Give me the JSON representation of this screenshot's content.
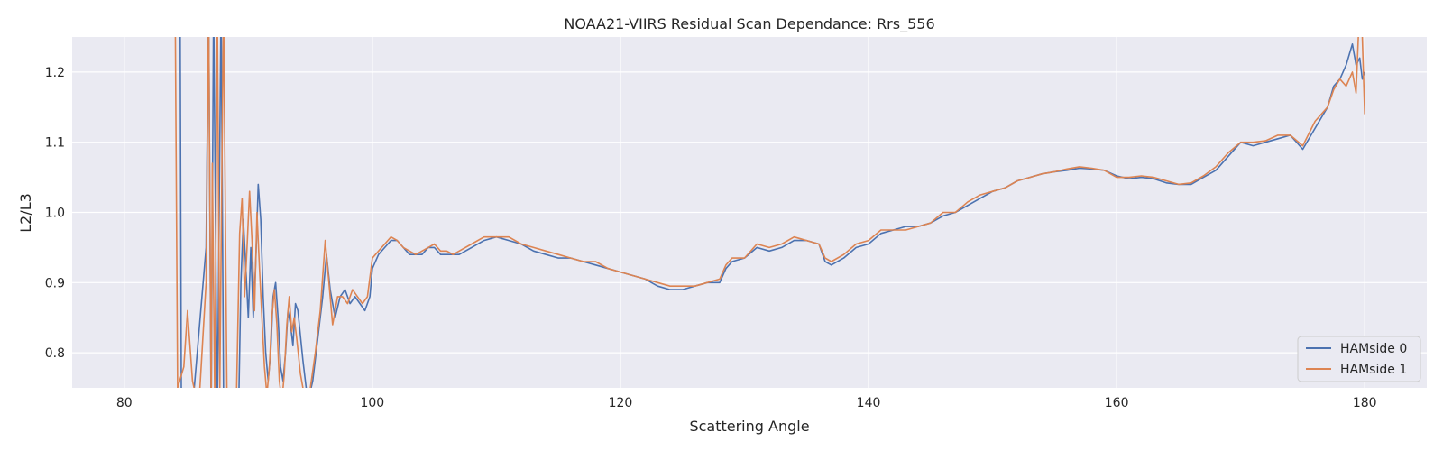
{
  "chart_data": {
    "type": "line",
    "title": "NOAA21-VIIRS Residual Scan Dependance: Rrs_556",
    "xlabel": "Scattering Angle",
    "ylabel": "L2/L3",
    "xlim": [
      75.8,
      185
    ],
    "ylim": [
      0.75,
      1.25
    ],
    "xticks": [
      80,
      100,
      120,
      140,
      160,
      180
    ],
    "yticks": [
      0.8,
      0.9,
      1.0,
      1.1,
      1.2
    ],
    "grid": true,
    "legend_position": "bottom-right",
    "series": [
      {
        "name": "HAMside 0",
        "color": "#4c72b0",
        "points": [
          [
            84.5,
            1.3
          ],
          [
            84.6,
            0.75
          ],
          [
            85.5,
            0.72
          ],
          [
            86.6,
            0.95
          ],
          [
            86.8,
            1.3
          ],
          [
            87.0,
            0.7
          ],
          [
            87.2,
            1.3
          ],
          [
            87.5,
            0.7
          ],
          [
            87.8,
            1.3
          ],
          [
            88.0,
            0.75
          ],
          [
            88.5,
            0.72
          ],
          [
            89.2,
            0.7
          ],
          [
            89.4,
            0.9
          ],
          [
            89.6,
            0.99
          ],
          [
            89.8,
            0.92
          ],
          [
            90.0,
            0.85
          ],
          [
            90.2,
            0.95
          ],
          [
            90.4,
            0.85
          ],
          [
            90.6,
            0.93
          ],
          [
            90.8,
            1.04
          ],
          [
            91.0,
            0.99
          ],
          [
            91.2,
            0.88
          ],
          [
            91.4,
            0.8
          ],
          [
            91.6,
            0.76
          ],
          [
            91.8,
            0.8
          ],
          [
            92.0,
            0.88
          ],
          [
            92.2,
            0.9
          ],
          [
            92.4,
            0.85
          ],
          [
            92.6,
            0.78
          ],
          [
            92.8,
            0.76
          ],
          [
            93.0,
            0.8
          ],
          [
            93.2,
            0.86
          ],
          [
            93.4,
            0.84
          ],
          [
            93.6,
            0.81
          ],
          [
            93.8,
            0.87
          ],
          [
            94.0,
            0.86
          ],
          [
            94.4,
            0.79
          ],
          [
            94.8,
            0.73
          ],
          [
            95.2,
            0.76
          ],
          [
            95.6,
            0.82
          ],
          [
            96.0,
            0.88
          ],
          [
            96.3,
            0.94
          ],
          [
            96.6,
            0.89
          ],
          [
            97.0,
            0.85
          ],
          [
            97.4,
            0.88
          ],
          [
            97.8,
            0.89
          ],
          [
            98.2,
            0.87
          ],
          [
            98.6,
            0.88
          ],
          [
            99.0,
            0.87
          ],
          [
            99.4,
            0.86
          ],
          [
            99.8,
            0.88
          ],
          [
            100.0,
            0.92
          ],
          [
            100.5,
            0.94
          ],
          [
            101.0,
            0.95
          ],
          [
            101.5,
            0.96
          ],
          [
            102.0,
            0.96
          ],
          [
            102.5,
            0.95
          ],
          [
            103.0,
            0.94
          ],
          [
            103.5,
            0.94
          ],
          [
            104.0,
            0.94
          ],
          [
            104.5,
            0.95
          ],
          [
            105.0,
            0.95
          ],
          [
            105.5,
            0.94
          ],
          [
            106.0,
            0.94
          ],
          [
            106.5,
            0.94
          ],
          [
            107.0,
            0.94
          ],
          [
            108.0,
            0.95
          ],
          [
            109.0,
            0.96
          ],
          [
            110.0,
            0.965
          ],
          [
            111.0,
            0.96
          ],
          [
            112.0,
            0.955
          ],
          [
            113.0,
            0.945
          ],
          [
            114.0,
            0.94
          ],
          [
            115.0,
            0.935
          ],
          [
            116.0,
            0.935
          ],
          [
            117.0,
            0.93
          ],
          [
            118.0,
            0.925
          ],
          [
            119.0,
            0.92
          ],
          [
            120.0,
            0.915
          ],
          [
            121.0,
            0.91
          ],
          [
            122.0,
            0.905
          ],
          [
            123.0,
            0.895
          ],
          [
            124.0,
            0.89
          ],
          [
            125.0,
            0.89
          ],
          [
            126.0,
            0.895
          ],
          [
            127.0,
            0.9
          ],
          [
            128.0,
            0.9
          ],
          [
            128.5,
            0.92
          ],
          [
            129.0,
            0.93
          ],
          [
            130.0,
            0.935
          ],
          [
            131.0,
            0.95
          ],
          [
            132.0,
            0.945
          ],
          [
            133.0,
            0.95
          ],
          [
            134.0,
            0.96
          ],
          [
            135.0,
            0.96
          ],
          [
            136.0,
            0.955
          ],
          [
            136.5,
            0.93
          ],
          [
            137.0,
            0.925
          ],
          [
            138.0,
            0.935
          ],
          [
            139.0,
            0.95
          ],
          [
            140.0,
            0.955
          ],
          [
            141.0,
            0.97
          ],
          [
            142.0,
            0.975
          ],
          [
            143.0,
            0.98
          ],
          [
            144.0,
            0.98
          ],
          [
            145.0,
            0.985
          ],
          [
            146.0,
            0.995
          ],
          [
            147.0,
            1.0
          ],
          [
            148.0,
            1.01
          ],
          [
            149.0,
            1.02
          ],
          [
            150.0,
            1.03
          ],
          [
            151.0,
            1.035
          ],
          [
            152.0,
            1.045
          ],
          [
            153.0,
            1.05
          ],
          [
            154.0,
            1.055
          ],
          [
            155.0,
            1.058
          ],
          [
            156.0,
            1.06
          ],
          [
            157.0,
            1.063
          ],
          [
            158.0,
            1.062
          ],
          [
            159.0,
            1.06
          ],
          [
            160.0,
            1.052
          ],
          [
            161.0,
            1.048
          ],
          [
            162.0,
            1.05
          ],
          [
            163.0,
            1.048
          ],
          [
            164.0,
            1.042
          ],
          [
            165.0,
            1.04
          ],
          [
            166.0,
            1.04
          ],
          [
            167.0,
            1.05
          ],
          [
            168.0,
            1.06
          ],
          [
            169.0,
            1.08
          ],
          [
            170.0,
            1.1
          ],
          [
            171.0,
            1.095
          ],
          [
            172.0,
            1.1
          ],
          [
            173.0,
            1.105
          ],
          [
            174.0,
            1.11
          ],
          [
            175.0,
            1.09
          ],
          [
            176.0,
            1.12
          ],
          [
            177.0,
            1.15
          ],
          [
            177.5,
            1.18
          ],
          [
            178.0,
            1.19
          ],
          [
            178.5,
            1.21
          ],
          [
            179.0,
            1.24
          ],
          [
            179.3,
            1.21
          ],
          [
            179.6,
            1.22
          ],
          [
            179.8,
            1.19
          ],
          [
            180.0,
            1.2
          ]
        ]
      },
      {
        "name": "HAMside 1",
        "color": "#dd8452",
        "points": [
          [
            84.1,
            1.3
          ],
          [
            84.3,
            0.75
          ],
          [
            84.8,
            0.78
          ],
          [
            85.1,
            0.86
          ],
          [
            85.5,
            0.76
          ],
          [
            86.0,
            0.72
          ],
          [
            86.6,
            0.9
          ],
          [
            86.8,
            1.3
          ],
          [
            87.0,
            0.72
          ],
          [
            87.1,
            1.07
          ],
          [
            87.3,
            0.72
          ],
          [
            87.5,
            1.3
          ],
          [
            87.7,
            0.75
          ],
          [
            88.0,
            1.3
          ],
          [
            88.3,
            0.7
          ],
          [
            88.6,
            0.72
          ],
          [
            89.0,
            0.7
          ],
          [
            89.3,
            0.97
          ],
          [
            89.5,
            1.02
          ],
          [
            89.7,
            0.88
          ],
          [
            89.9,
            0.95
          ],
          [
            90.1,
            1.03
          ],
          [
            90.3,
            0.96
          ],
          [
            90.5,
            0.86
          ],
          [
            90.7,
            1.0
          ],
          [
            90.9,
            0.92
          ],
          [
            91.1,
            0.85
          ],
          [
            91.3,
            0.78
          ],
          [
            91.5,
            0.74
          ],
          [
            91.7,
            0.78
          ],
          [
            91.9,
            0.85
          ],
          [
            92.1,
            0.89
          ],
          [
            92.3,
            0.84
          ],
          [
            92.5,
            0.76
          ],
          [
            92.7,
            0.73
          ],
          [
            92.9,
            0.77
          ],
          [
            93.1,
            0.84
          ],
          [
            93.3,
            0.88
          ],
          [
            93.5,
            0.83
          ],
          [
            93.7,
            0.85
          ],
          [
            93.9,
            0.82
          ],
          [
            94.2,
            0.77
          ],
          [
            94.6,
            0.73
          ],
          [
            95.0,
            0.75
          ],
          [
            95.4,
            0.8
          ],
          [
            95.8,
            0.86
          ],
          [
            96.2,
            0.96
          ],
          [
            96.5,
            0.9
          ],
          [
            96.8,
            0.84
          ],
          [
            97.2,
            0.88
          ],
          [
            97.6,
            0.88
          ],
          [
            98.0,
            0.87
          ],
          [
            98.4,
            0.89
          ],
          [
            98.8,
            0.88
          ],
          [
            99.2,
            0.87
          ],
          [
            99.6,
            0.88
          ],
          [
            100.0,
            0.935
          ],
          [
            100.5,
            0.945
          ],
          [
            101.0,
            0.955
          ],
          [
            101.5,
            0.965
          ],
          [
            102.0,
            0.96
          ],
          [
            102.5,
            0.95
          ],
          [
            103.0,
            0.945
          ],
          [
            103.5,
            0.94
          ],
          [
            104.0,
            0.945
          ],
          [
            104.5,
            0.95
          ],
          [
            105.0,
            0.955
          ],
          [
            105.5,
            0.945
          ],
          [
            106.0,
            0.945
          ],
          [
            106.5,
            0.94
          ],
          [
            107.0,
            0.945
          ],
          [
            108.0,
            0.955
          ],
          [
            109.0,
            0.965
          ],
          [
            110.0,
            0.965
          ],
          [
            111.0,
            0.965
          ],
          [
            112.0,
            0.955
          ],
          [
            113.0,
            0.95
          ],
          [
            114.0,
            0.945
          ],
          [
            115.0,
            0.94
          ],
          [
            116.0,
            0.935
          ],
          [
            117.0,
            0.93
          ],
          [
            118.0,
            0.93
          ],
          [
            119.0,
            0.92
          ],
          [
            120.0,
            0.915
          ],
          [
            121.0,
            0.91
          ],
          [
            122.0,
            0.905
          ],
          [
            123.0,
            0.9
          ],
          [
            124.0,
            0.895
          ],
          [
            125.0,
            0.895
          ],
          [
            126.0,
            0.895
          ],
          [
            127.0,
            0.9
          ],
          [
            128.0,
            0.905
          ],
          [
            128.5,
            0.925
          ],
          [
            129.0,
            0.935
          ],
          [
            130.0,
            0.935
          ],
          [
            131.0,
            0.955
          ],
          [
            132.0,
            0.95
          ],
          [
            133.0,
            0.955
          ],
          [
            134.0,
            0.965
          ],
          [
            135.0,
            0.96
          ],
          [
            136.0,
            0.955
          ],
          [
            136.5,
            0.935
          ],
          [
            137.0,
            0.93
          ],
          [
            138.0,
            0.94
          ],
          [
            139.0,
            0.955
          ],
          [
            140.0,
            0.96
          ],
          [
            141.0,
            0.975
          ],
          [
            142.0,
            0.975
          ],
          [
            143.0,
            0.975
          ],
          [
            144.0,
            0.98
          ],
          [
            145.0,
            0.985
          ],
          [
            146.0,
            1.0
          ],
          [
            147.0,
            1.0
          ],
          [
            148.0,
            1.015
          ],
          [
            149.0,
            1.025
          ],
          [
            150.0,
            1.03
          ],
          [
            151.0,
            1.035
          ],
          [
            152.0,
            1.045
          ],
          [
            153.0,
            1.05
          ],
          [
            154.0,
            1.055
          ],
          [
            155.0,
            1.058
          ],
          [
            156.0,
            1.062
          ],
          [
            157.0,
            1.065
          ],
          [
            158.0,
            1.063
          ],
          [
            159.0,
            1.06
          ],
          [
            160.0,
            1.05
          ],
          [
            161.0,
            1.05
          ],
          [
            162.0,
            1.052
          ],
          [
            163.0,
            1.05
          ],
          [
            164.0,
            1.045
          ],
          [
            165.0,
            1.04
          ],
          [
            166.0,
            1.042
          ],
          [
            167.0,
            1.052
          ],
          [
            168.0,
            1.065
          ],
          [
            169.0,
            1.085
          ],
          [
            170.0,
            1.1
          ],
          [
            171.0,
            1.1
          ],
          [
            172.0,
            1.102
          ],
          [
            173.0,
            1.11
          ],
          [
            174.0,
            1.11
          ],
          [
            175.0,
            1.095
          ],
          [
            176.0,
            1.13
          ],
          [
            177.0,
            1.15
          ],
          [
            177.5,
            1.175
          ],
          [
            178.0,
            1.19
          ],
          [
            178.5,
            1.18
          ],
          [
            179.0,
            1.2
          ],
          [
            179.3,
            1.17
          ],
          [
            179.6,
            1.3
          ],
          [
            179.8,
            1.25
          ],
          [
            180.0,
            1.14
          ]
        ]
      }
    ]
  }
}
